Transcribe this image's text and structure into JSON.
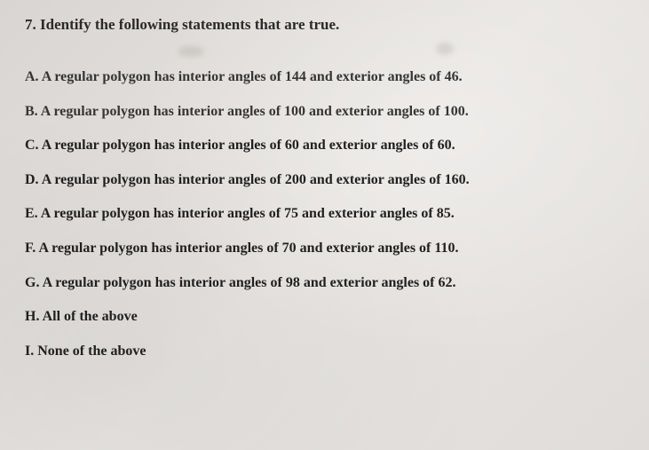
{
  "question": {
    "number": "7.",
    "prompt": "Identify the following statements that are true."
  },
  "options": [
    {
      "label": "A.",
      "text": "A regular polygon has interior angles of 144 and exterior angles of 46."
    },
    {
      "label": "B.",
      "text": "A regular polygon has interior angles of 100 and exterior angles of 100."
    },
    {
      "label": "C.",
      "text": "A regular polygon has interior angles of 60 and exterior angles of 60."
    },
    {
      "label": "D.",
      "text": "A regular polygon has interior angles of 200 and exterior angles of 160."
    },
    {
      "label": "E.",
      "text": "A regular polygon has interior angles of 75 and exterior angles of 85."
    },
    {
      "label": "F.",
      "text": "A regular polygon has interior angles of 70 and exterior angles of 110."
    },
    {
      "label": "G.",
      "text": "A regular polygon has interior angles of 98 and exterior angles of 62."
    },
    {
      "label": "H.",
      "text": "All of the above"
    },
    {
      "label": "I.",
      "text": "None of the above"
    }
  ],
  "style": {
    "background_color": "#e0ddd9",
    "text_color": "#2a2a2a",
    "font_family": "Georgia, serif",
    "header_fontsize": 17,
    "option_fontsize": 16,
    "option_spacing": 17,
    "font_weight": "bold"
  }
}
